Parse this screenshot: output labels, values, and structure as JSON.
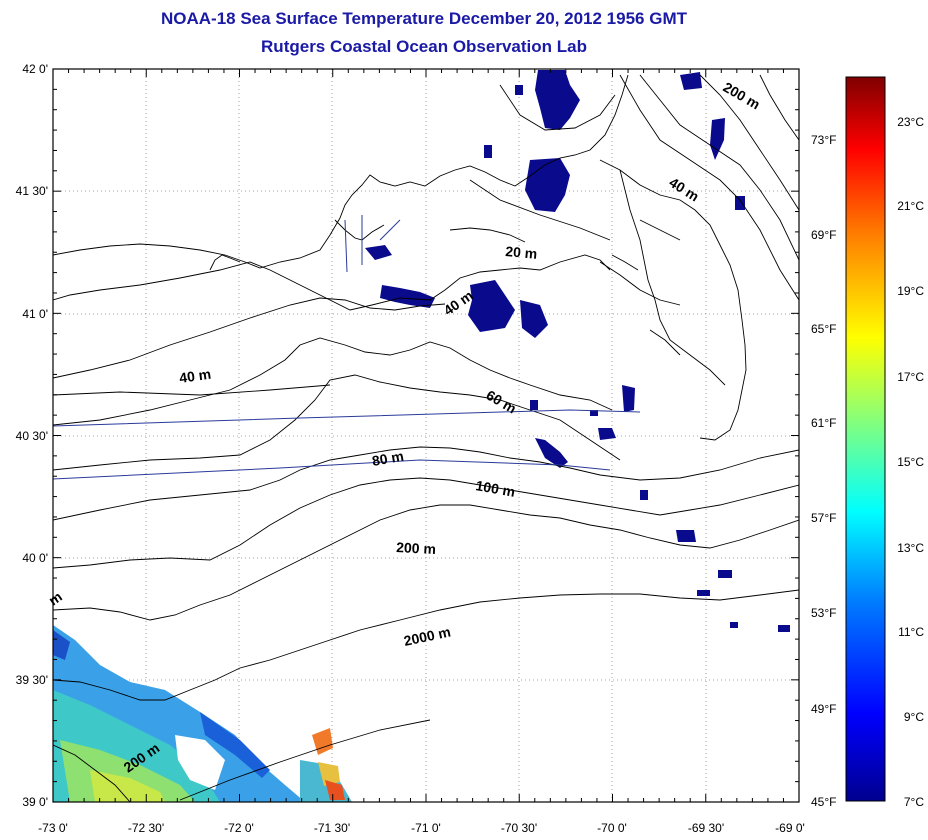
{
  "title": "NOAA-18 Sea Surface Temperature December 20, 2012 1956 GMT",
  "subtitle": "Rutgers Coastal Ocean Observation Lab",
  "x_ticks": [
    "-73 0'",
    "-72 30'",
    "-72 0'",
    "-71 30'",
    "-71 0'",
    "-70 30'",
    "-70 0'",
    "-69 30'",
    "-69 0'"
  ],
  "y_ticks": [
    "42 0'",
    "41 30'",
    "41 0'",
    "40 30'",
    "40 0'",
    "39 30'",
    "39 0'"
  ],
  "colorbar": {
    "celsius": [
      "23°C",
      "21°C",
      "19°C",
      "17°C",
      "15°C",
      "13°C",
      "11°C",
      "9°C",
      "7°C"
    ],
    "fahrenheit": [
      "73°F",
      "69°F",
      "65°F",
      "61°F",
      "57°F",
      "53°F",
      "49°F",
      "45°F"
    ],
    "colors": [
      "#00008f",
      "#0000ff",
      "#0080ff",
      "#00ffff",
      "#80ff80",
      "#ffff00",
      "#ff8000",
      "#ff0000",
      "#800000"
    ]
  },
  "contour_labels": [
    "200 m",
    "40 m",
    "20 m",
    "40 m",
    "40 m",
    "60 m",
    "80 m",
    "100 m",
    "200 m",
    "2000 m",
    "200 m",
    "m"
  ]
}
